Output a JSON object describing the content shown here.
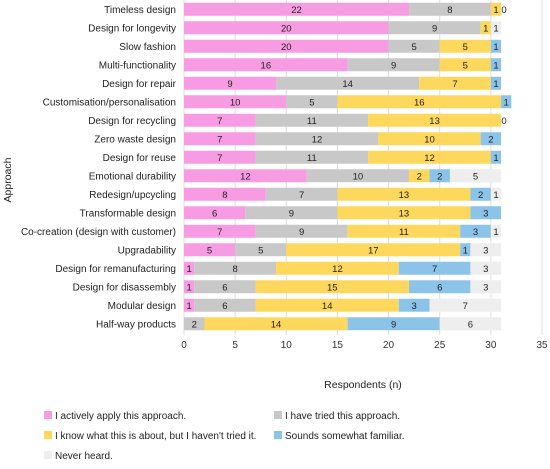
{
  "chart_data": {
    "type": "bar",
    "orientation": "horizontal",
    "stacked": true,
    "title": "",
    "xlabel": "Respondents (n)",
    "ylabel": "Approach",
    "xlim": [
      0,
      35
    ],
    "xticks": [
      0,
      5,
      10,
      15,
      20,
      25,
      30,
      35
    ],
    "grid": true,
    "legend_position": "bottom",
    "categories": [
      "Timeless design",
      "Design for longevity",
      "Slow fashion",
      "Multi-functionality",
      "Design for repair",
      "Customisation/personalisation",
      "Design for recycling",
      "Zero waste design",
      "Design for reuse",
      "Emotional durability",
      "Redesign/upcycling",
      "Transformable design",
      "Co-creation (design with customer)",
      "Upgradability",
      "Design for remanufacturing",
      "Design for disassembly",
      "Modular design",
      "Half-way products"
    ],
    "series": [
      {
        "name": "I actively apply this approach.",
        "color": "#f79ce3",
        "values": [
          22,
          20,
          20,
          16,
          9,
          10,
          7,
          7,
          7,
          12,
          8,
          6,
          7,
          5,
          1,
          1,
          1,
          0
        ]
      },
      {
        "name": "I have tried this approach.",
        "color": "#c8c8c8",
        "values": [
          8,
          9,
          5,
          9,
          14,
          5,
          11,
          12,
          11,
          10,
          7,
          9,
          9,
          5,
          8,
          6,
          6,
          2
        ]
      },
      {
        "name": "I know what this is about, but I haven't tried it.",
        "color": "#fdd85c",
        "values": [
          1,
          1,
          5,
          5,
          7,
          16,
          13,
          10,
          12,
          2,
          13,
          13,
          11,
          17,
          12,
          15,
          14,
          14
        ]
      },
      {
        "name": "Sounds somewhat familiar.",
        "color": "#8cc3e8",
        "values": [
          0,
          0,
          1,
          1,
          1,
          1,
          0,
          2,
          1,
          2,
          2,
          3,
          3,
          1,
          7,
          6,
          3,
          9
        ]
      },
      {
        "name": "Never heard.",
        "color": "#eeeeee",
        "values": [
          0,
          1,
          0,
          0,
          0,
          0,
          0,
          0,
          0,
          5,
          1,
          0,
          1,
          3,
          3,
          3,
          7,
          6
        ]
      }
    ]
  }
}
